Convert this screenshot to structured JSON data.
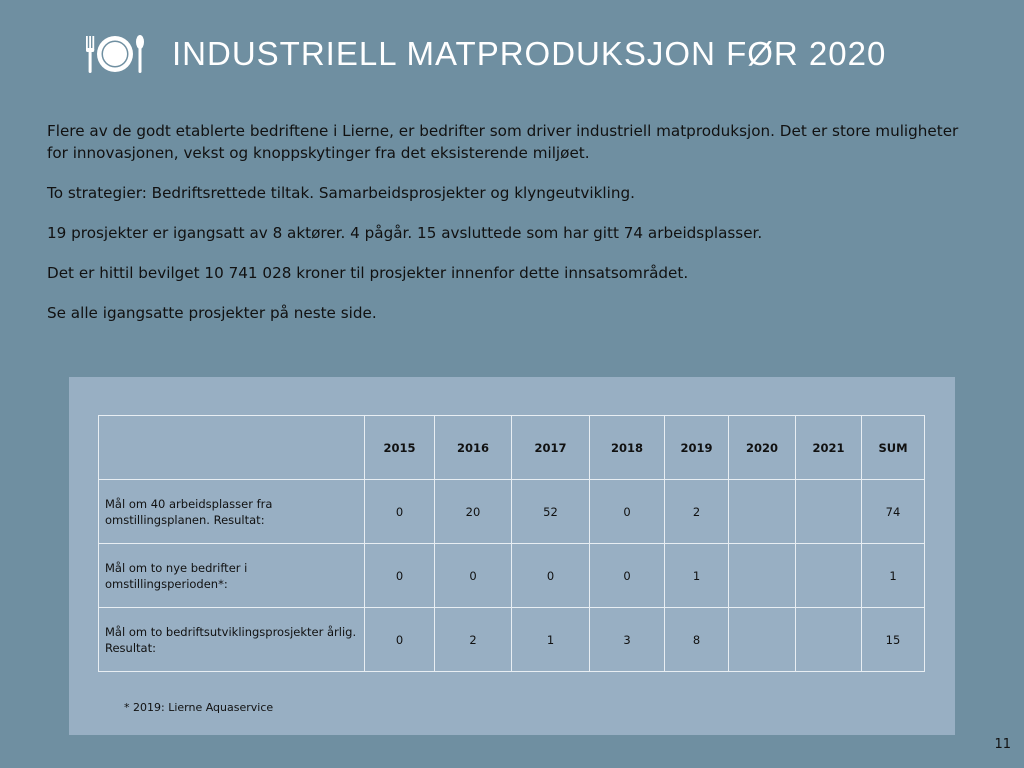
{
  "header": {
    "title": "INDUSTRIELL MATPRODUKSJON FØR 2020",
    "icon": "plate-fork-knife-icon"
  },
  "paragraphs": [
    "Flere av de godt etablerte bedriftene i Lierne, er bedrifter som driver industriell matproduksjon. Det er store muligheter for innovasjonen, vekst og knoppskytinger fra det eksisterende miljøet.",
    "To strategier: Bedriftsrettede tiltak. Samarbeidsprosjekter og klyngeutvikling.",
    "19 prosjekter er igangsatt av 8 aktører. 4 pågår. 15 avsluttede som har gitt 74 arbeidsplasser.",
    "Det er hittil bevilget 10 741 028 kroner til prosjekter innenfor dette innsatsområdet.",
    "Se alle igangsatte prosjekter på neste side."
  ],
  "table": {
    "headers": [
      "",
      "2015",
      "2016",
      "2017",
      "2018",
      "2019",
      "2020",
      "2021",
      "SUM"
    ],
    "rows": [
      {
        "label": "Mål om 40 arbeidsplasser fra omstillingsplanen. Resultat:",
        "cells": [
          "0",
          "20",
          "52",
          "0",
          "2",
          "",
          "",
          "74"
        ]
      },
      {
        "label": "Mål om to nye bedrifter i omstillingsperioden*:",
        "cells": [
          "0",
          "0",
          "0",
          "0",
          "1",
          "",
          "",
          "1"
        ]
      },
      {
        "label": "Mål om to bedriftsutviklingsprosjekter årlig. Resultat:",
        "cells": [
          "0",
          "2",
          "1",
          "3",
          "8",
          "",
          "",
          "15"
        ]
      }
    ]
  },
  "footnote": "* 2019: Lierne Aquaservice",
  "page_number": "11",
  "colors": {
    "background": "#6f8fa1",
    "panel": "#98afc3",
    "title": "#ffffff"
  }
}
